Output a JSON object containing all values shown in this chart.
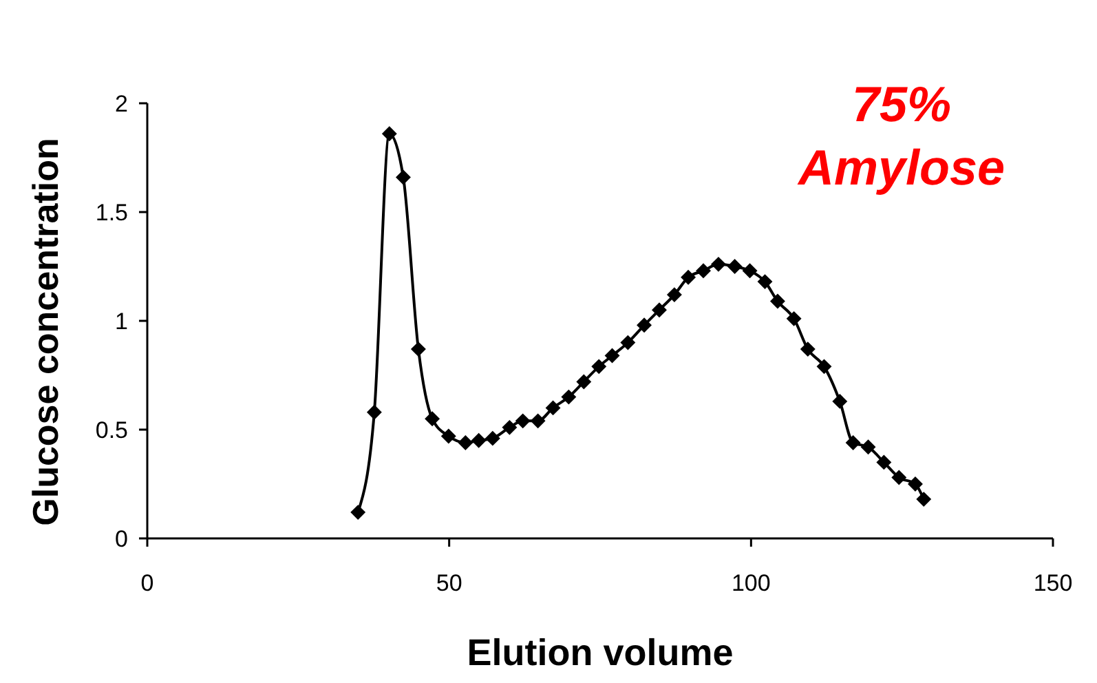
{
  "chart_data": {
    "type": "line",
    "xlabel": "Elution volume",
    "ylabel": "Glucose concentration",
    "annotations": [
      "75% Amylose"
    ],
    "x": [
      34.9,
      37.6,
      40.1,
      42.4,
      44.9,
      47.2,
      49.9,
      52.7,
      54.9,
      57.2,
      60.0,
      62.2,
      64.7,
      67.2,
      69.8,
      72.3,
      74.8,
      77.0,
      79.6,
      82.3,
      84.8,
      87.3,
      89.6,
      92.1,
      94.6,
      97.3,
      99.8,
      102.3,
      104.4,
      107.1,
      109.4,
      112.1,
      114.7,
      116.9,
      119.4,
      122.0,
      124.5,
      127.2,
      128.6
    ],
    "series": [
      {
        "color": "#000000",
        "values": [
          0.12,
          0.58,
          1.86,
          1.66,
          0.87,
          0.55,
          0.47,
          0.44,
          0.45,
          0.46,
          0.51,
          0.54,
          0.54,
          0.6,
          0.65,
          0.72,
          0.79,
          0.84,
          0.9,
          0.98,
          1.05,
          1.12,
          1.2,
          1.23,
          1.26,
          1.25,
          1.23,
          1.18,
          1.09,
          1.01,
          0.87,
          0.79,
          0.63,
          0.44,
          0.42,
          0.35,
          0.28,
          0.25,
          0.18
        ]
      }
    ],
    "xlim": [
      0,
      150
    ],
    "xticks": [
      0,
      50,
      100,
      150
    ],
    "ylim": [
      0,
      2
    ],
    "yticks": [
      0,
      0.5,
      1,
      1.5,
      2
    ],
    "grid": false,
    "marker": "diamond",
    "line_style": "solid"
  }
}
